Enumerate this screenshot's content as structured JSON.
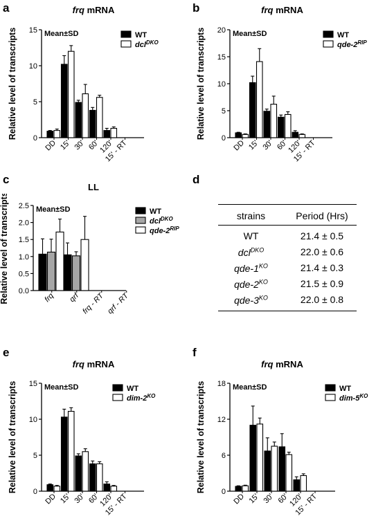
{
  "panels": {
    "a": {
      "letter": "a",
      "title_italic": "frq",
      "title_rest": " mRNA"
    },
    "b": {
      "letter": "b",
      "title_italic": "frq",
      "title_rest": " mRNA"
    },
    "c": {
      "letter": "c",
      "title": "LL"
    },
    "d": {
      "letter": "d"
    },
    "e": {
      "letter": "e",
      "title_italic": "frq",
      "title_rest": " mRNA"
    },
    "f": {
      "letter": "f",
      "title_italic": "frq",
      "title_rest": " mRNA"
    }
  },
  "table": {
    "headers": [
      "strains",
      "Period (Hrs)"
    ],
    "rows": [
      {
        "strain": "WT",
        "sup": "",
        "period": "21.4 ± 0.5"
      },
      {
        "strain": "dcl",
        "sup": "DKO",
        "period": "22.0 ± 0.6"
      },
      {
        "strain": "qde-1",
        "sup": "KO",
        "period": "21.4 ± 0.3"
      },
      {
        "strain": "qde-2",
        "sup": "KO",
        "period": "21.5 ± 0.9"
      },
      {
        "strain": "qde-3",
        "sup": "KO",
        "period": "22.0 ± 0.8"
      }
    ]
  },
  "chart_data": [
    {
      "id": "a",
      "type": "bar",
      "ylabel": "Relative level of transcripts",
      "annotation": "Mean±SD",
      "categories": [
        "DD",
        "15'",
        "30'",
        "60'",
        "120'",
        "15' - RT"
      ],
      "ylim": [
        0,
        15
      ],
      "yticks": [
        0,
        5,
        10,
        15
      ],
      "series": [
        {
          "name": "WT",
          "name_sup": "",
          "color": "#000000",
          "values": [
            0.9,
            10.2,
            4.9,
            3.8,
            1.0,
            0
          ],
          "errors": [
            0.1,
            1.2,
            0.3,
            0.4,
            0.3,
            0
          ]
        },
        {
          "name": "dcl",
          "name_sup": "DKO",
          "color": "#ffffff",
          "values": [
            1.0,
            12.0,
            6.1,
            5.6,
            1.3,
            0
          ],
          "errors": [
            0.2,
            0.8,
            1.3,
            0.3,
            0.2,
            0
          ]
        }
      ]
    },
    {
      "id": "b",
      "type": "bar",
      "ylabel": "Relative level of transcripts",
      "annotation": "Mean±SD",
      "categories": [
        "DD",
        "15'",
        "30'",
        "60'",
        "120'",
        "15' - RT"
      ],
      "ylim": [
        0,
        20
      ],
      "yticks": [
        0,
        5,
        10,
        15,
        20
      ],
      "series": [
        {
          "name": "WT",
          "name_sup": "",
          "color": "#000000",
          "values": [
            0.9,
            10.2,
            4.9,
            3.8,
            1.0,
            0
          ],
          "errors": [
            0.1,
            1.2,
            0.4,
            0.4,
            0.3,
            0
          ]
        },
        {
          "name": "qde-2",
          "name_sup": "RIP",
          "color": "#ffffff",
          "values": [
            0.6,
            14.1,
            6.2,
            4.3,
            0.6,
            0
          ],
          "errors": [
            0.1,
            2.4,
            1.5,
            0.5,
            0.1,
            0
          ]
        }
      ]
    },
    {
      "id": "c",
      "type": "bar",
      "ylabel": "Relative level of transcripts",
      "annotation": "Mean±SD",
      "categories": [
        "frq",
        "qrf",
        "frq - RT",
        "qrf - RT"
      ],
      "ylim": [
        0,
        2.5
      ],
      "yticks": [
        0.0,
        0.5,
        1.0,
        1.5,
        2.0,
        2.5
      ],
      "series": [
        {
          "name": "WT",
          "name_sup": "",
          "color": "#000000",
          "values": [
            1.07,
            1.05,
            0,
            0
          ],
          "errors": [
            0.45,
            0.35,
            0,
            0
          ]
        },
        {
          "name": "dcl",
          "name_sup": "DKO",
          "color": "#a6a6a6",
          "values": [
            1.13,
            1.02,
            0,
            0
          ],
          "errors": [
            0.38,
            0.12,
            0,
            0
          ]
        },
        {
          "name": "qde-2",
          "name_sup": "RIP",
          "color": "#ffffff",
          "values": [
            1.72,
            1.5,
            0,
            0
          ],
          "errors": [
            0.38,
            0.68,
            0,
            0
          ]
        }
      ]
    },
    {
      "id": "e",
      "type": "bar",
      "ylabel": "Relative level of transcripts",
      "annotation": "Mean±SD",
      "categories": [
        "DD",
        "15'",
        "30'",
        "60'",
        "120'",
        "15' - RT"
      ],
      "ylim": [
        0,
        15
      ],
      "yticks": [
        0,
        5,
        10,
        15
      ],
      "series": [
        {
          "name": "WT",
          "name_sup": "",
          "color": "#000000",
          "values": [
            0.9,
            10.3,
            4.9,
            3.8,
            1.0,
            0
          ],
          "errors": [
            0.1,
            1.1,
            0.3,
            0.4,
            0.3,
            0
          ]
        },
        {
          "name": "dim-2",
          "name_sup": "KO",
          "color": "#ffffff",
          "values": [
            0.7,
            11.1,
            5.5,
            3.8,
            0.7,
            0
          ],
          "errors": [
            0.1,
            0.5,
            0.4,
            0.3,
            0.1,
            0
          ]
        }
      ]
    },
    {
      "id": "f",
      "type": "bar",
      "ylabel": "Relative level of transcripts",
      "annotation": "Mean±SD",
      "categories": [
        "DD",
        "15'",
        "30'",
        "60'",
        "120'",
        "15' - RT"
      ],
      "ylim": [
        0,
        18
      ],
      "yticks": [
        0,
        6,
        12,
        18
      ],
      "series": [
        {
          "name": "WT",
          "name_sup": "",
          "color": "#000000",
          "values": [
            0.8,
            11.0,
            6.7,
            7.4,
            1.9,
            0
          ],
          "errors": [
            0.1,
            3.2,
            2.2,
            2.2,
            0.5,
            0
          ]
        },
        {
          "name": "dim-5",
          "name_sup": "KO",
          "color": "#ffffff",
          "values": [
            0.9,
            11.2,
            7.5,
            6.1,
            2.6,
            0
          ],
          "errors": [
            0.1,
            1.0,
            0.7,
            0.4,
            0.3,
            0
          ]
        }
      ]
    }
  ]
}
